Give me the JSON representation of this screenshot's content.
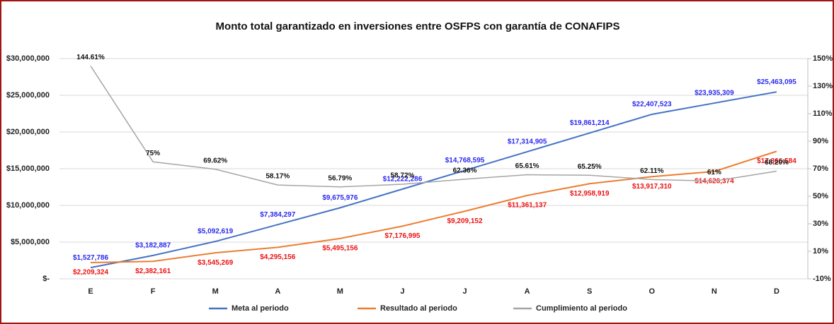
{
  "chart_data": {
    "type": "line",
    "title": "Monto total garantizado en inversiones entre OSFPS con garantía de CONAFIPS",
    "categories": [
      "E",
      "F",
      "M",
      "A",
      "M",
      "J",
      "J",
      "A",
      "S",
      "O",
      "N",
      "D"
    ],
    "ylim": [
      0,
      30000000
    ],
    "yticks": [
      {
        "value": 0,
        "label": "$-"
      },
      {
        "value": 5000000,
        "label": "$5,000,000"
      },
      {
        "value": 10000000,
        "label": "$10,000,000"
      },
      {
        "value": 15000000,
        "label": "$15,000,000"
      },
      {
        "value": 20000000,
        "label": "$20,000,000"
      },
      {
        "value": 25000000,
        "label": "$25,000,000"
      },
      {
        "value": 30000000,
        "label": "$30,000,000"
      }
    ],
    "y2lim": [
      -10,
      150
    ],
    "y2ticks": [
      {
        "value": -10,
        "label": "-10%"
      },
      {
        "value": 10,
        "label": "10%"
      },
      {
        "value": 30,
        "label": "30%"
      },
      {
        "value": 50,
        "label": "50%"
      },
      {
        "value": 70,
        "label": "70%"
      },
      {
        "value": 90,
        "label": "90%"
      },
      {
        "value": 110,
        "label": "110%"
      },
      {
        "value": 130,
        "label": "130%"
      },
      {
        "value": 150,
        "label": "150%"
      }
    ],
    "grid": true,
    "legend": "bottom",
    "series": [
      {
        "name": "Meta al periodo",
        "color": "#4472c4",
        "label_color": "#2a2af0",
        "values": [
          1527786,
          3182887,
          5092619,
          7384297,
          9675976,
          12222286,
          14768595,
          17314905,
          19861214,
          22407523,
          23935309,
          25463095
        ],
        "value_labels": [
          "$1,527,786",
          "$3,182,887",
          "$5,092,619",
          "$7,384,297",
          "$9,675,976",
          "$12,222,286",
          "$14,768,595",
          "$17,314,905",
          "$19,861,214",
          "$22,407,523",
          "$23,935,309",
          "$25,463,095"
        ]
      },
      {
        "name": "Resultado al periodo",
        "color": "#ed7d31",
        "label_color": "#ee1111",
        "values": [
          2209324,
          2382161,
          3545269,
          4295156,
          5495156,
          7176995,
          9209152,
          11361137,
          12958919,
          13917310,
          14626374,
          17366584
        ],
        "value_labels": [
          "$2,209,324",
          "$2,382,161",
          "$3,545,269",
          "$4,295,156",
          "$5,495,156",
          "$7,176,995",
          "$9,209,152",
          "$11,361,137",
          "$12,958,919",
          "$13,917,310",
          "$14,626,374",
          "$17,366,584"
        ]
      },
      {
        "name": "Cumplimiento al periodo",
        "color": "#a5a5a5",
        "label_color": "#111111",
        "axis": "y2",
        "values": [
          144.61,
          75,
          69.62,
          58.17,
          56.79,
          58.72,
          62.36,
          65.61,
          65.25,
          62.11,
          61,
          68.2
        ],
        "value_labels": [
          "144.61%",
          "75%",
          "69.62%",
          "58.17%",
          "56.79%",
          "58.72%",
          "62.36%",
          "65.61%",
          "65.25%",
          "62.11%",
          "61%",
          "68.20%"
        ]
      }
    ]
  }
}
